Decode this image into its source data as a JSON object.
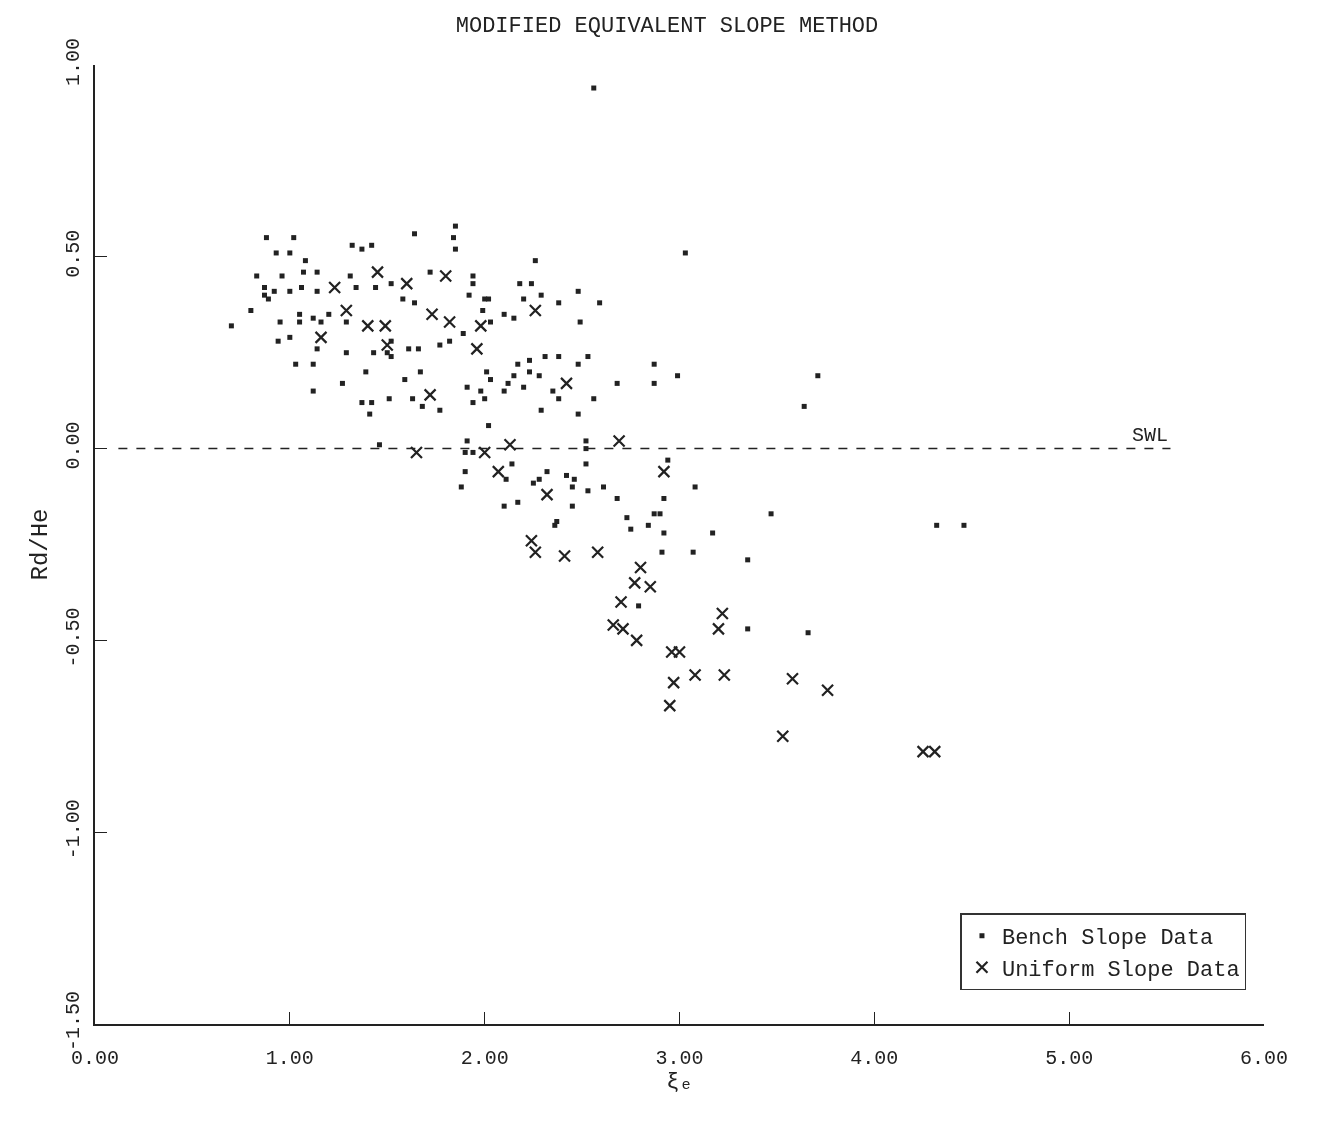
{
  "chart_data": {
    "type": "scatter",
    "title": "MODIFIED EQUIVALENT SLOPE METHOD",
    "xlabel": "ξₑ",
    "ylabel": "Rd/He",
    "xlim": [
      0,
      6
    ],
    "xticks": [
      {
        "value": 0,
        "label": "0.00"
      },
      {
        "value": 1,
        "label": "1.00"
      },
      {
        "value": 2,
        "label": "2.00"
      },
      {
        "value": 3,
        "label": "3.00"
      },
      {
        "value": 4,
        "label": "4.00"
      },
      {
        "value": 5,
        "label": "5.00"
      },
      {
        "value": 6,
        "label": "6.00"
      }
    ],
    "ylim": [
      -1.5,
      1
    ],
    "yticks": [
      {
        "value": -1.5,
        "label": "-1.50"
      },
      {
        "value": -1,
        "label": "-1.00"
      },
      {
        "value": -0.5,
        "label": "-0.50"
      },
      {
        "value": 0,
        "label": "0.00"
      },
      {
        "value": 0.5,
        "label": "0.50"
      },
      {
        "value": 1,
        "label": "1.00"
      }
    ],
    "grid": false,
    "legend": "bottom right",
    "ref_lines": [
      {
        "axis": "y",
        "value": 0,
        "label": "SWL",
        "line_style": "dashed",
        "color": "#222222"
      }
    ],
    "series": [
      {
        "name": "Bench Slope Data",
        "color": "#222222",
        "marker": "square",
        "x": [
          0.88,
          1.02,
          1.64,
          1.85,
          1.84,
          1.85,
          1.32,
          1.37,
          1.42,
          0.93,
          1.0,
          1.08,
          1.07,
          1.14,
          0.83,
          0.96,
          0.87,
          0.92,
          1.06,
          1.0,
          1.14,
          1.31,
          1.34,
          1.44,
          1.52,
          1.72,
          1.94,
          1.94,
          1.92,
          1.58,
          1.64,
          0.87,
          0.89,
          0.8,
          0.7,
          2.26,
          2.18,
          2.24,
          2.2,
          2.29,
          2.48,
          2.38,
          2.59,
          2.49,
          2.0,
          2.02,
          1.99,
          2.03,
          2.1,
          2.15,
          1.05,
          1.05,
          0.95,
          1.12,
          1.2,
          1.16,
          0.94,
          1.0,
          1.29,
          1.14,
          1.29,
          1.43,
          1.52,
          1.61,
          1.66,
          1.77,
          1.82,
          1.89,
          1.5,
          1.52,
          1.03,
          1.12,
          1.39,
          1.12,
          1.27,
          1.37,
          1.42,
          1.41,
          1.51,
          1.59,
          1.67,
          1.63,
          1.68,
          1.77,
          1.91,
          1.98,
          1.94,
          2.0,
          2.02,
          2.01,
          2.03,
          2.1,
          2.12,
          2.2,
          2.15,
          2.17,
          2.23,
          2.23,
          2.28,
          2.31,
          2.38,
          2.48,
          2.53,
          2.35,
          2.38,
          2.29,
          2.48,
          2.56,
          2.68,
          1.46,
          1.91,
          1.9,
          1.94,
          2.52,
          2.52,
          2.87,
          2.87,
          2.99,
          3.64,
          3.71,
          1.9,
          1.88,
          2.14,
          2.11,
          2.1,
          2.17,
          2.32,
          2.28,
          2.25,
          2.42,
          2.46,
          2.45,
          2.45,
          2.52,
          2.53,
          2.61,
          2.68,
          2.37,
          2.36,
          2.73,
          2.75,
          2.84,
          2.87,
          2.9,
          2.92,
          2.92,
          2.94,
          3.08,
          3.47,
          3.17,
          2.91,
          3.07,
          3.35,
          2.79,
          3.35,
          3.66,
          4.32,
          4.46,
          3.03,
          2.56
        ],
        "values": [
          0.55,
          0.55,
          0.56,
          0.58,
          0.55,
          0.52,
          0.53,
          0.52,
          0.53,
          0.51,
          0.51,
          0.49,
          0.46,
          0.46,
          0.45,
          0.45,
          0.42,
          0.41,
          0.42,
          0.41,
          0.41,
          0.45,
          0.42,
          0.42,
          0.43,
          0.46,
          0.45,
          0.43,
          0.4,
          0.39,
          0.38,
          0.4,
          0.39,
          0.36,
          0.32,
          0.49,
          0.43,
          0.43,
          0.39,
          0.4,
          0.41,
          0.38,
          0.38,
          0.33,
          0.39,
          0.39,
          0.36,
          0.33,
          0.35,
          0.34,
          0.35,
          0.33,
          0.33,
          0.34,
          0.35,
          0.33,
          0.28,
          0.29,
          0.33,
          0.26,
          0.25,
          0.25,
          0.28,
          0.26,
          0.26,
          0.27,
          0.28,
          0.3,
          0.25,
          0.24,
          0.22,
          0.22,
          0.2,
          0.15,
          0.17,
          0.12,
          0.12,
          0.09,
          0.13,
          0.18,
          0.2,
          0.13,
          0.11,
          0.1,
          0.16,
          0.15,
          0.12,
          0.13,
          0.06,
          0.2,
          0.18,
          0.15,
          0.17,
          0.16,
          0.19,
          0.22,
          0.23,
          0.2,
          0.19,
          0.24,
          0.24,
          0.22,
          0.24,
          0.15,
          0.13,
          0.1,
          0.09,
          0.13,
          0.17,
          0.01,
          0.02,
          -0.01,
          -0.01,
          0.02,
          0.0,
          0.22,
          0.17,
          0.19,
          0.11,
          0.19,
          -0.06,
          -0.1,
          -0.04,
          -0.08,
          -0.15,
          -0.14,
          -0.06,
          -0.08,
          -0.09,
          -0.07,
          -0.08,
          -0.1,
          -0.15,
          -0.04,
          -0.11,
          -0.1,
          -0.13,
          -0.19,
          -0.2,
          -0.18,
          -0.21,
          -0.2,
          -0.17,
          -0.17,
          -0.13,
          -0.22,
          -0.03,
          -0.1,
          -0.17,
          -0.22,
          -0.27,
          -0.27,
          -0.29,
          -0.41,
          -0.47,
          -0.48,
          -0.2,
          -0.2,
          0.51,
          0.94
        ]
      },
      {
        "name": "Uniform Slope Data",
        "color": "#222222",
        "marker": "cross",
        "x": [
          1.23,
          1.45,
          1.6,
          1.8,
          1.29,
          1.16,
          1.4,
          1.49,
          1.73,
          1.82,
          1.98,
          1.96,
          2.26,
          2.42,
          1.5,
          1.72,
          1.65,
          2.0,
          2.13,
          2.69,
          2.07,
          2.32,
          2.24,
          2.26,
          2.41,
          2.58,
          2.92,
          2.8,
          2.77,
          2.85,
          2.7,
          3.22,
          2.66,
          2.71,
          2.78,
          3.2,
          2.96,
          3.0,
          2.97,
          3.08,
          3.23,
          3.58,
          3.76,
          2.95,
          3.53,
          4.25,
          4.31
        ],
        "values": [
          0.42,
          0.46,
          0.43,
          0.45,
          0.36,
          0.29,
          0.32,
          0.32,
          0.35,
          0.33,
          0.32,
          0.26,
          0.36,
          0.17,
          0.27,
          0.14,
          -0.01,
          -0.01,
          0.01,
          0.02,
          -0.06,
          -0.12,
          -0.24,
          -0.27,
          -0.28,
          -0.27,
          -0.06,
          -0.31,
          -0.35,
          -0.36,
          -0.4,
          -0.43,
          -0.46,
          -0.47,
          -0.5,
          -0.47,
          -0.53,
          -0.53,
          -0.61,
          -0.59,
          -0.59,
          -0.6,
          -0.63,
          -0.67,
          -0.75,
          -0.79,
          -0.79
        ]
      }
    ]
  }
}
